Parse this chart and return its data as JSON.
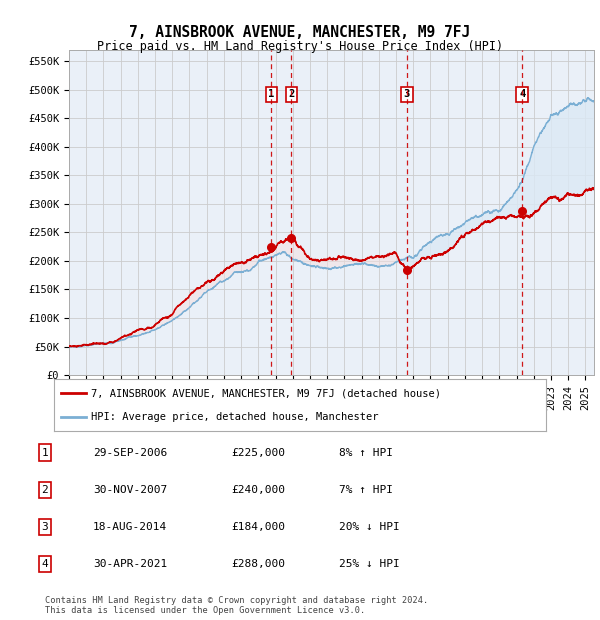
{
  "title": "7, AINSBROOK AVENUE, MANCHESTER, M9 7FJ",
  "subtitle": "Price paid vs. HM Land Registry's House Price Index (HPI)",
  "ylabel_ticks": [
    "£0",
    "£50K",
    "£100K",
    "£150K",
    "£200K",
    "£250K",
    "£300K",
    "£350K",
    "£400K",
    "£450K",
    "£500K",
    "£550K"
  ],
  "ytick_values": [
    0,
    50000,
    100000,
    150000,
    200000,
    250000,
    300000,
    350000,
    400000,
    450000,
    500000,
    550000
  ],
  "ylim": [
    0,
    570000
  ],
  "x_start_year": 1995,
  "x_end_year": 2025,
  "sale_events": [
    {
      "date_num": 2006.75,
      "price": 225000,
      "label": "1",
      "date_str": "29-SEP-2006",
      "pct": "8%",
      "dir": "↑"
    },
    {
      "date_num": 2007.92,
      "price": 240000,
      "label": "2",
      "date_str": "30-NOV-2007",
      "pct": "7%",
      "dir": "↑"
    },
    {
      "date_num": 2014.63,
      "price": 184000,
      "label": "3",
      "date_str": "18-AUG-2014",
      "pct": "20%",
      "dir": "↓"
    },
    {
      "date_num": 2021.33,
      "price": 288000,
      "label": "4",
      "date_str": "30-APR-2021",
      "pct": "25%",
      "dir": "↓"
    }
  ],
  "hpi_color": "#7bafd4",
  "hpi_fill_color": "#dce9f5",
  "price_color": "#cc0000",
  "dashed_color": "#cc0000",
  "box_color": "#cc0000",
  "grid_color": "#cccccc",
  "bg_color": "#eaf0f8",
  "legend_entries": [
    "7, AINSBROOK AVENUE, MANCHESTER, M9 7FJ (detached house)",
    "HPI: Average price, detached house, Manchester"
  ],
  "table_rows": [
    [
      "1",
      "29-SEP-2006",
      "£225,000",
      "8% ↑ HPI"
    ],
    [
      "2",
      "30-NOV-2007",
      "£240,000",
      "7% ↑ HPI"
    ],
    [
      "3",
      "18-AUG-2014",
      "£184,000",
      "20% ↓ HPI"
    ],
    [
      "4",
      "30-APR-2021",
      "£288,000",
      "25% ↓ HPI"
    ]
  ],
  "footnote": "Contains HM Land Registry data © Crown copyright and database right 2024.\nThis data is licensed under the Open Government Licence v3.0."
}
